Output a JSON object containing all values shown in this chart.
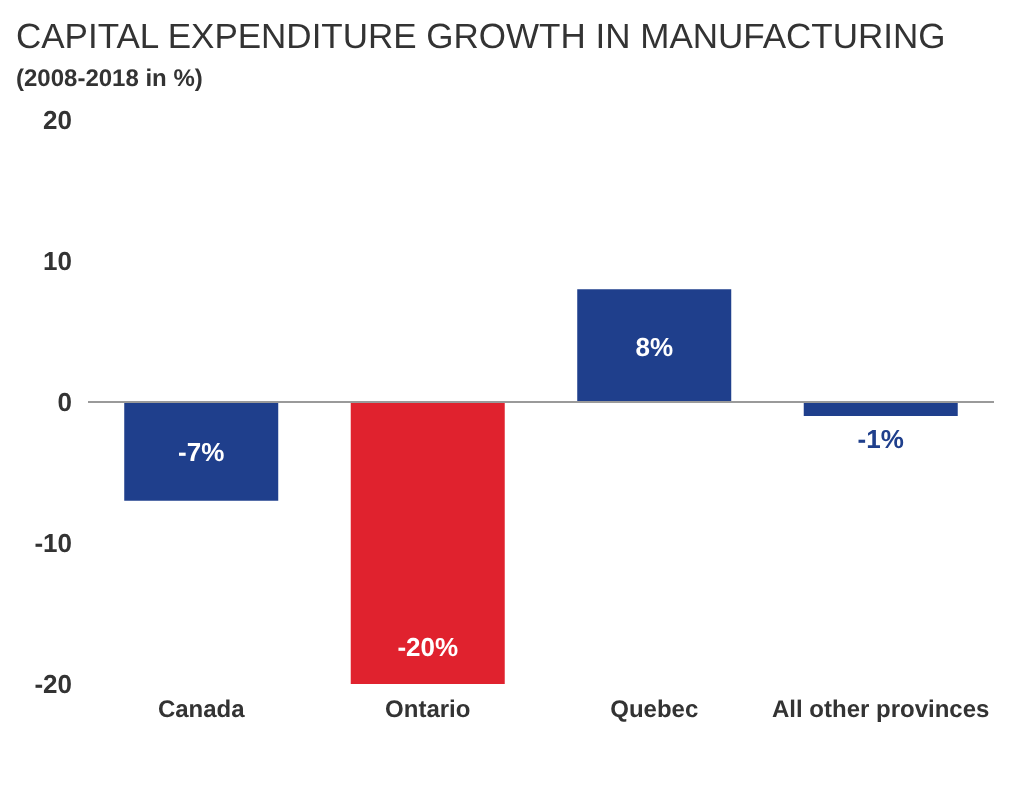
{
  "chart_data": {
    "type": "bar",
    "title": "CAPITAL EXPENDITURE GROWTH IN MANUFACTURING",
    "subtitle": "(2008-2018 in %)",
    "categories": [
      "Canada",
      "Ontario",
      "Quebec",
      "All other provinces"
    ],
    "values": [
      -7,
      -20,
      8,
      -1
    ],
    "colors": [
      "#1f3f8c",
      "#e0222e",
      "#1f3f8c",
      "#1f3f8c"
    ],
    "value_labels": [
      "-7%",
      "-20%",
      "8%",
      "-1%"
    ],
    "ylim": [
      -20,
      20
    ],
    "yticks": [
      -20,
      -10,
      0,
      10,
      20
    ],
    "grid": false,
    "legend": false,
    "ref_lines": [
      {
        "axis": "y",
        "value": 0,
        "color": "#9a9a9a"
      }
    ]
  }
}
